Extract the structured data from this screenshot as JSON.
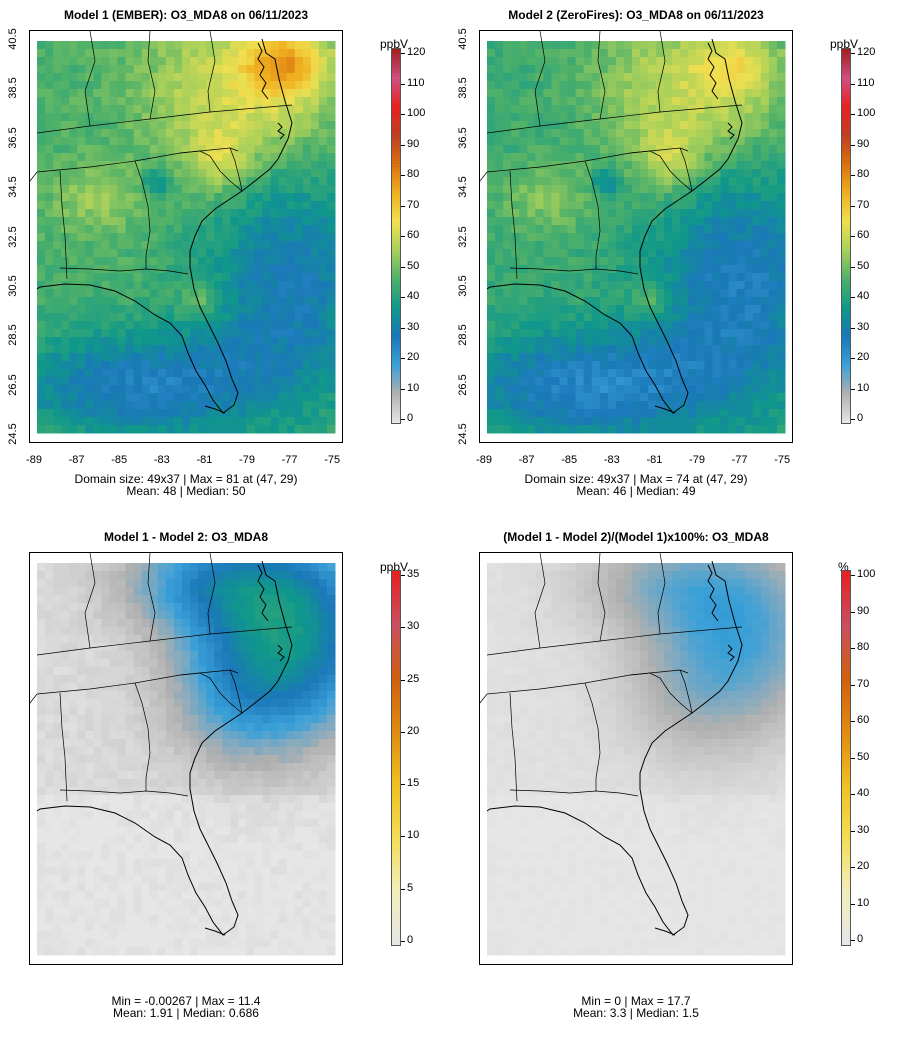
{
  "panels": [
    {
      "title": "Model 1 (EMBER): O3_MDA8 on 06/11/2023",
      "unit": "ppbV",
      "colorbar_ticks": [
        "120",
        "110",
        "100",
        "90",
        "80",
        "70",
        "60",
        "50",
        "40",
        "30",
        "20",
        "10",
        "0"
      ],
      "palette": "conc",
      "stats": [
        "Domain size: 49x37 | Max = 81 at (47, 29)",
        "Mean: 48 |  Median: 50"
      ]
    },
    {
      "title": "Model 2 (ZeroFires): O3_MDA8 on 06/11/2023",
      "unit": "ppbV",
      "colorbar_ticks": [
        "120",
        "110",
        "100",
        "90",
        "80",
        "70",
        "60",
        "50",
        "40",
        "30",
        "20",
        "10",
        "0"
      ],
      "palette": "conc",
      "stats": [
        "Domain size: 49x37 | Max = 74 at (47, 29)",
        "Mean: 46 |  Median: 49"
      ]
    },
    {
      "title": "Model 1 - Model 2: O3_MDA8",
      "unit": "ppbV",
      "colorbar_ticks": [
        "35",
        "30",
        "25",
        "20",
        "15",
        "10",
        "5",
        "0"
      ],
      "palette": "diff",
      "stats": [
        "Min = -0.00267 | Max = 11.4",
        "Mean: 1.91 |  Median: 0.686"
      ]
    },
    {
      "title": "(Model 1 - Model 2)/(Model 1)x100%: O3_MDA8",
      "unit": "%",
      "colorbar_ticks": [
        "100",
        "90",
        "80",
        "70",
        "60",
        "50",
        "40",
        "30",
        "20",
        "10",
        "0"
      ],
      "palette": "diff",
      "stats": [
        "Min = 0 | Max = 17.7",
        "Mean: 3.3 |  Median: 1.5"
      ]
    }
  ],
  "axes": {
    "lat_ticks": [
      "40.5",
      "38.5",
      "36.5",
      "34.5",
      "32.5",
      "30.5",
      "28.5",
      "26.5",
      "24.5"
    ],
    "lon_ticks": [
      "-89",
      "-87",
      "-85",
      "-83",
      "-81",
      "-79",
      "-77",
      "-75"
    ]
  },
  "colors": {
    "conc": [
      "#e6e6e6",
      "#b0b0b0",
      "#3aa0d8",
      "#1a78b8",
      "#10988a",
      "#4db06a",
      "#a8d05a",
      "#f0e050",
      "#f0b020",
      "#d87010",
      "#c04020",
      "#e82020",
      "#d05080",
      "#a02020"
    ],
    "diff": [
      "#e6e6e6",
      "#f2eebb",
      "#f3dd55",
      "#f0c020",
      "#e08a10",
      "#d06010",
      "#c85060",
      "#e82020"
    ]
  }
}
